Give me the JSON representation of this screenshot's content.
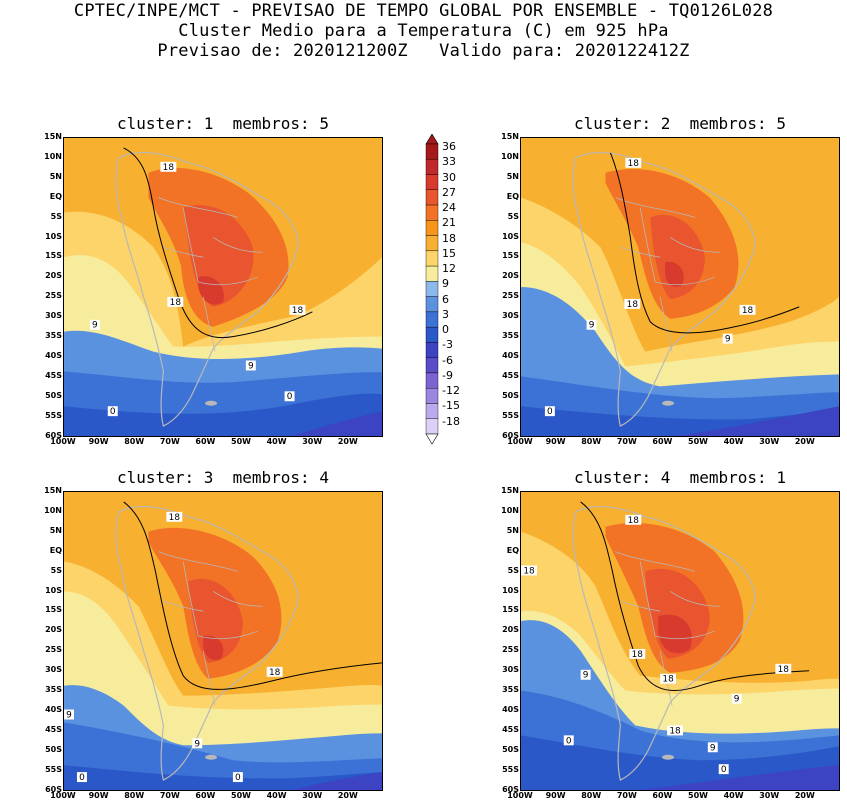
{
  "header": {
    "line1": "CPTEC/INPE/MCT - PREVISAO DE TEMPO GLOBAL POR ENSEMBLE - TQ0126L028",
    "line2": "Cluster Medio para a Temperatura (C) em 925 hPa",
    "line3": "Previsao de: 2020121200Z   Valido para: 2020122412Z"
  },
  "panels": [
    {
      "title": "cluster: 1  membros: 5",
      "contour_labels": [
        "18",
        "18",
        "18",
        "9",
        "9",
        "0",
        "0"
      ]
    },
    {
      "title": "cluster: 2  membros: 5",
      "contour_labels": [
        "18",
        "18",
        "18",
        "9",
        "9",
        "0"
      ]
    },
    {
      "title": "cluster: 3  membros: 4",
      "contour_labels": [
        "18",
        "18",
        "9",
        "9",
        "0",
        "0"
      ]
    },
    {
      "title": "cluster: 4  membros: 1",
      "contour_labels": [
        "18",
        "18",
        "18",
        "18",
        "18",
        "18",
        "9",
        "9",
        "9",
        "0",
        "0"
      ]
    }
  ],
  "axes": {
    "lat_labels": [
      "15N",
      "10N",
      "5N",
      "EQ",
      "5S",
      "10S",
      "15S",
      "20S",
      "25S",
      "30S",
      "35S",
      "40S",
      "45S",
      "50S",
      "55S",
      "60S"
    ],
    "lon_labels": [
      "100W",
      "90W",
      "80W",
      "70W",
      "60W",
      "50W",
      "40W",
      "30W",
      "20W"
    ]
  },
  "colorbar": {
    "labels": [
      "36",
      "33",
      "30",
      "27",
      "24",
      "21",
      "18",
      "15",
      "12",
      "9",
      "6",
      "3",
      "0",
      "-3",
      "-6",
      "-9",
      "-12",
      "-15",
      "-18"
    ],
    "colors": [
      "#a51a1a",
      "#c0282a",
      "#d93a2e",
      "#e8552f",
      "#f27226",
      "#f7951a",
      "#f7b030",
      "#fcd46a",
      "#f7ec9c",
      "#8cb8ec",
      "#5b92e0",
      "#3c72d6",
      "#2a58c8",
      "#3c44c4",
      "#5a4cc8",
      "#7a64d2",
      "#9c86de",
      "#bcaaec",
      "#dcd0f6"
    ]
  }
}
